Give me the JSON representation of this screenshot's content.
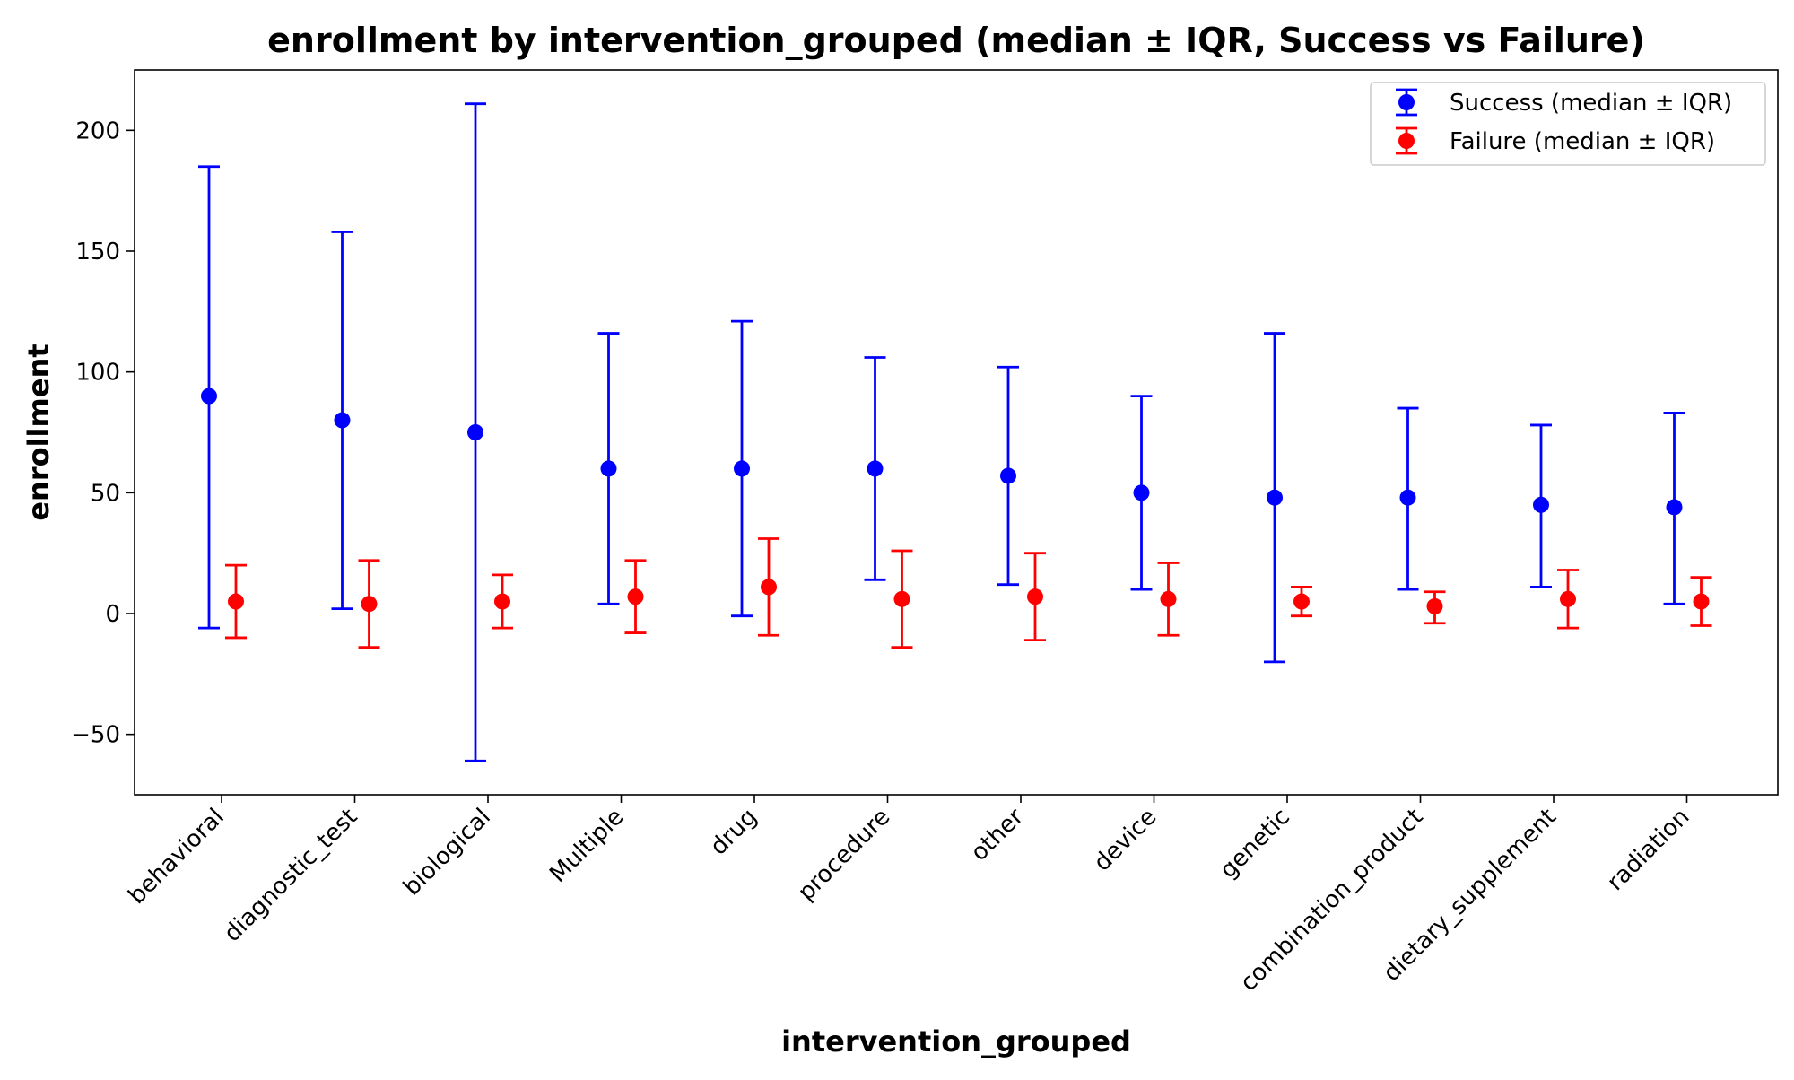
{
  "chart_data": {
    "type": "errorbar",
    "title": "enrollment by intervention_grouped (median ± IQR, Success vs Failure)",
    "xlabel": "intervention_grouped",
    "ylabel": "enrollment",
    "ylim": [
      -75,
      225
    ],
    "yticks": [
      -50,
      0,
      50,
      100,
      150,
      200
    ],
    "ytick_labels": [
      "−50",
      "0",
      "50",
      "100",
      "150",
      "200"
    ],
    "grid": false,
    "legend_position": "top-right",
    "categories": [
      "behavioral",
      "diagnostic_test",
      "biological",
      "Multiple",
      "drug",
      "procedure",
      "other",
      "device",
      "genetic",
      "combination_product",
      "dietary_supplement",
      "radiation"
    ],
    "series": [
      {
        "name": "Success (median ± IQR)",
        "color": "#0000ff",
        "median": [
          90,
          80,
          75,
          60,
          60,
          60,
          57,
          50,
          48,
          48,
          45,
          44
        ],
        "lower": [
          -6,
          2,
          -61,
          4,
          -1,
          14,
          12,
          10,
          -20,
          10,
          11,
          4
        ],
        "upper": [
          185,
          158,
          211,
          116,
          121,
          106,
          102,
          90,
          116,
          85,
          78,
          83
        ]
      },
      {
        "name": "Failure (median ± IQR)",
        "color": "#ff0000",
        "median": [
          5,
          4,
          5,
          7,
          11,
          6,
          7,
          6,
          5,
          3,
          6,
          5
        ],
        "lower": [
          -10,
          -14,
          -6,
          -8,
          -9,
          -14,
          -11,
          -9,
          -1,
          -4,
          -6,
          -5
        ],
        "upper": [
          20,
          22,
          16,
          22,
          31,
          26,
          25,
          21,
          11,
          9,
          18,
          15
        ]
      }
    ]
  }
}
